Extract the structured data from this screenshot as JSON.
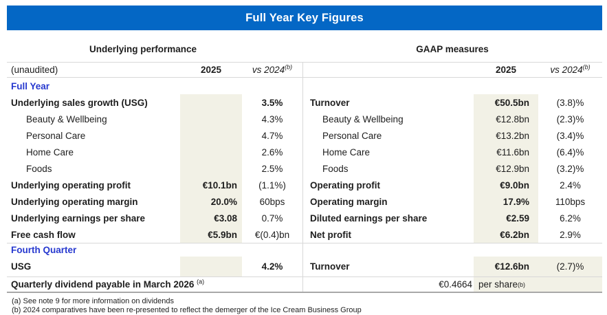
{
  "title": "Full Year Key Figures",
  "colors": {
    "header_bar": "#0467c5",
    "section_text": "#2638cf",
    "highlight_column": "#f2f1e6"
  },
  "group_headers": {
    "left": "Underlying performance",
    "right": "GAAP measures"
  },
  "column_header": {
    "unaudited": "(unaudited)",
    "year": "2025",
    "vs": "vs 2024",
    "vs_sup": "(b)"
  },
  "sections": {
    "full_year": "Full Year",
    "fourth_quarter": "Fourth Quarter"
  },
  "rows": [
    {
      "left": {
        "label": "Underlying sales growth (USG)",
        "v2025": "",
        "vs": "3.5%"
      },
      "right": {
        "label": "Turnover",
        "v2025": "€50.5bn",
        "vs": "(3.8)%"
      }
    },
    {
      "left": {
        "label": "Beauty & Wellbeing",
        "v2025": "",
        "vs": "4.3%"
      },
      "right": {
        "label": "Beauty & Wellbeing",
        "v2025": "€12.8bn",
        "vs": "(2.3)%"
      }
    },
    {
      "left": {
        "label": "Personal Care",
        "v2025": "",
        "vs": "4.7%"
      },
      "right": {
        "label": "Personal Care",
        "v2025": "€13.2bn",
        "vs": "(3.4)%"
      }
    },
    {
      "left": {
        "label": "Home Care",
        "v2025": "",
        "vs": "2.6%"
      },
      "right": {
        "label": "Home Care",
        "v2025": "€11.6bn",
        "vs": "(6.4)%"
      }
    },
    {
      "left": {
        "label": "Foods",
        "v2025": "",
        "vs": "2.5%"
      },
      "right": {
        "label": "Foods",
        "v2025": "€12.9bn",
        "vs": "(3.2)%"
      }
    },
    {
      "left": {
        "label": "Underlying operating profit",
        "v2025": "€10.1bn",
        "vs": "(1.1%)"
      },
      "right": {
        "label": "Operating profit",
        "v2025": "€9.0bn",
        "vs": "2.4%"
      }
    },
    {
      "left": {
        "label": "Underlying operating margin",
        "v2025": "20.0%",
        "vs": "60bps"
      },
      "right": {
        "label": "Operating margin",
        "v2025": "17.9%",
        "vs": "110bps"
      }
    },
    {
      "left": {
        "label": "Underlying earnings per share",
        "v2025": "€3.08",
        "vs": "0.7%"
      },
      "right": {
        "label": "Diluted earnings per share",
        "v2025": "€2.59",
        "vs": "6.2%"
      }
    },
    {
      "left": {
        "label": "Free cash flow",
        "v2025": "€5.9bn",
        "vs": "€(0.4)bn"
      },
      "right": {
        "label": "Net profit",
        "v2025": "€6.2bn",
        "vs": "2.9%"
      }
    }
  ],
  "q4_row": {
    "left": {
      "label": "USG",
      "v2025": "",
      "vs": "4.2%"
    },
    "right": {
      "label": "Turnover",
      "v2025": "€12.6bn",
      "vs": "(2.7)%"
    }
  },
  "dividend": {
    "label": "Quarterly dividend payable in March 2026 ",
    "label_sup": "(a)",
    "amount": "€0.4664",
    "per_share": "per share",
    "per_share_sup": "(b)"
  },
  "footnotes": [
    "(a) See note 9 for more information on dividends",
    "(b) 2024 comparatives have been re-presented to reflect the demerger of the Ice Cream Business Group"
  ]
}
